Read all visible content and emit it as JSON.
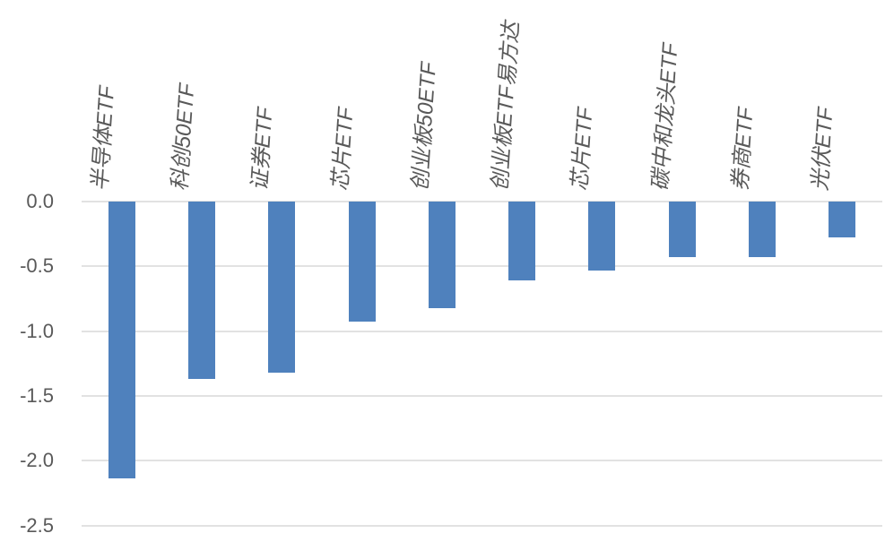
{
  "chart_data": {
    "type": "bar",
    "title": "",
    "xlabel": "",
    "ylabel": "",
    "categories": [
      "半导体ETF",
      "科创50ETF",
      "证券ETF",
      "芯片ETF",
      "创业板50ETF",
      "创业板ETF易方达",
      "芯片ETF",
      "碳中和龙头ETF",
      "券商ETF",
      "光伏ETF"
    ],
    "values": [
      -2.14,
      -1.37,
      -1.32,
      -0.93,
      -0.82,
      -0.61,
      -0.53,
      -0.43,
      -0.43,
      -0.28
    ],
    "ylim": [
      -2.5,
      0.0
    ],
    "yticks": [
      0.0,
      -0.5,
      -1.0,
      -1.5,
      -2.0,
      -2.5
    ],
    "ytick_labels": [
      "0.0",
      "-0.5",
      "-1.0",
      "-1.5",
      "-2.0",
      "-2.5"
    ],
    "grid": true,
    "legend": false,
    "category_label_rotation_deg": -86,
    "colors": {
      "bar": "#4f81bd",
      "gridline": "#e2e2e2",
      "tick_label": "#595959",
      "category_label": "#595959",
      "background": "#ffffff"
    }
  }
}
